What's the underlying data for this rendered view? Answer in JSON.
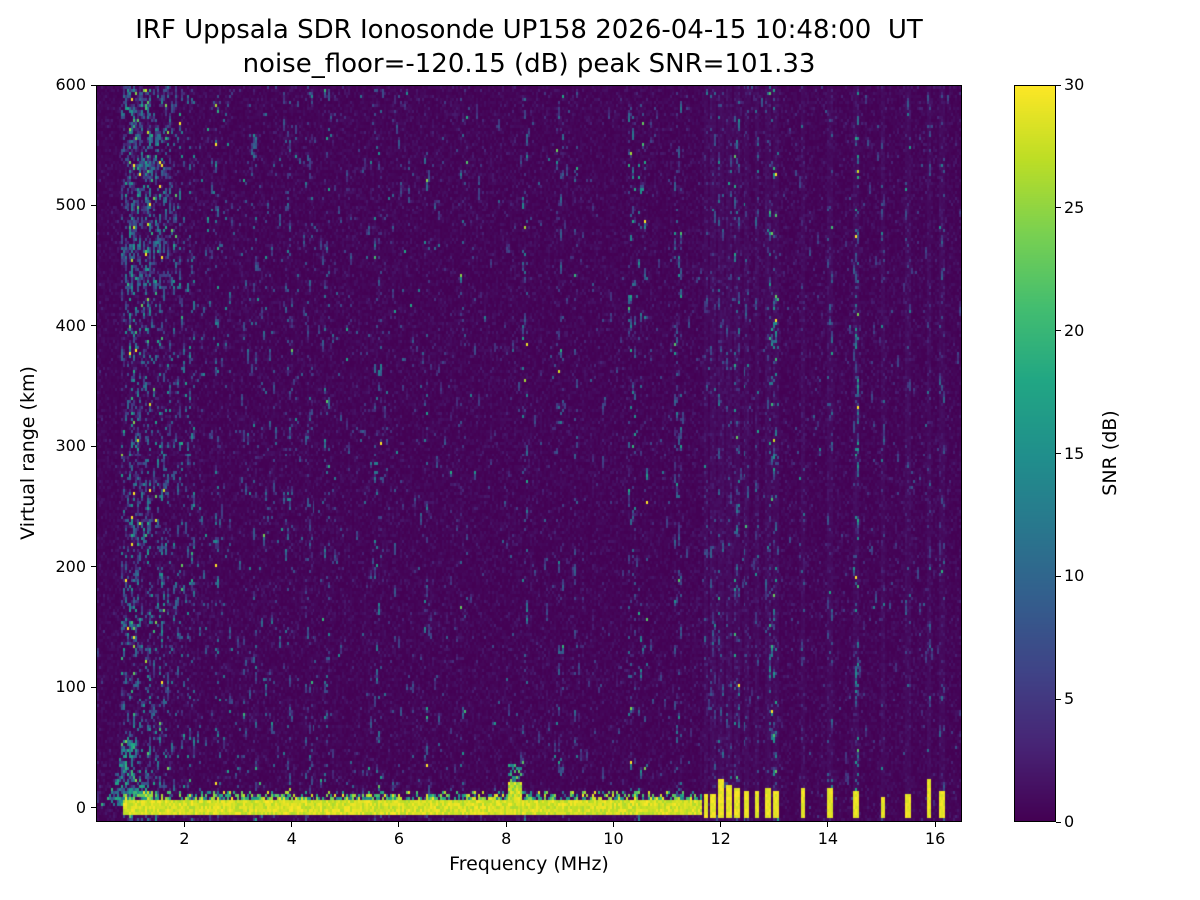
{
  "figure": {
    "title_line1": "IRF Uppsala SDR Ionosonde UP158 2026-04-15 10:48:00  UT",
    "title_line2": "noise_floor=-120.15 (dB) peak SNR=101.33"
  },
  "chart_data": {
    "type": "heatmap",
    "title": "IRF Uppsala SDR Ionosonde UP158 2026-04-15 10:48:00  UT",
    "subtitle": "noise_floor=-120.15 (dB) peak SNR=101.33",
    "station": "IRF Uppsala SDR Ionosonde UP158",
    "timestamp_ut": "2026-04-15 10:48:00",
    "noise_floor_db": -120.15,
    "peak_snr_db": 101.33,
    "xlabel": "Frequency (MHz)",
    "ylabel": "Virtual range (km)",
    "colorbar_label": "SNR (dB)",
    "colormap": "viridis",
    "background_color": "#440154",
    "peak_color": "#fde725",
    "xlim": [
      0.35,
      16.5
    ],
    "ylim": [
      -12,
      600
    ],
    "clim": [
      0,
      30
    ],
    "x_ticks": [
      2,
      4,
      6,
      8,
      10,
      12,
      14,
      16
    ],
    "y_ticks": [
      0,
      100,
      200,
      300,
      400,
      500,
      600
    ],
    "colorbar_ticks": [
      0,
      5,
      10,
      15,
      20,
      25,
      30
    ],
    "features": {
      "ground_pulse_band": {
        "f_start_mhz": 0.82,
        "f_end_mhz": 11.65,
        "center_km": 0,
        "solid_top_km": 6,
        "ragged_top_km": 14,
        "bottom_km": -8,
        "snr_db": 30
      },
      "band_bump": {
        "f_mhz": 8.15,
        "solid_top_km": 20,
        "ragged_top_km": 36
      },
      "low_freq_cusp": {
        "f_mhz": 0.95,
        "top_km": 58,
        "width_mhz": 0.28
      },
      "upper_left_noise_region": {
        "f_max_mhz": 1.9,
        "km_min": 430,
        "density_boost": 2.0
      },
      "rfi_bars_mhz": [
        11.72,
        11.85,
        12.0,
        12.15,
        12.3,
        12.5,
        12.7,
        12.9,
        13.05,
        13.55,
        14.05,
        14.55,
        15.05,
        15.5,
        15.9,
        16.15
      ],
      "noise_streaks_mhz": [
        1.0,
        1.15,
        1.3,
        1.5,
        1.65,
        2.1,
        2.6,
        3.3,
        3.9,
        4.3,
        4.65,
        5.6,
        6.5,
        7.2,
        8.35,
        9.0,
        9.3,
        10.35,
        10.55,
        11.2,
        12.3,
        13.0,
        14.55
      ]
    },
    "render": {
      "seed": 42,
      "grid_nx": 433,
      "grid_ny": 246
    }
  }
}
